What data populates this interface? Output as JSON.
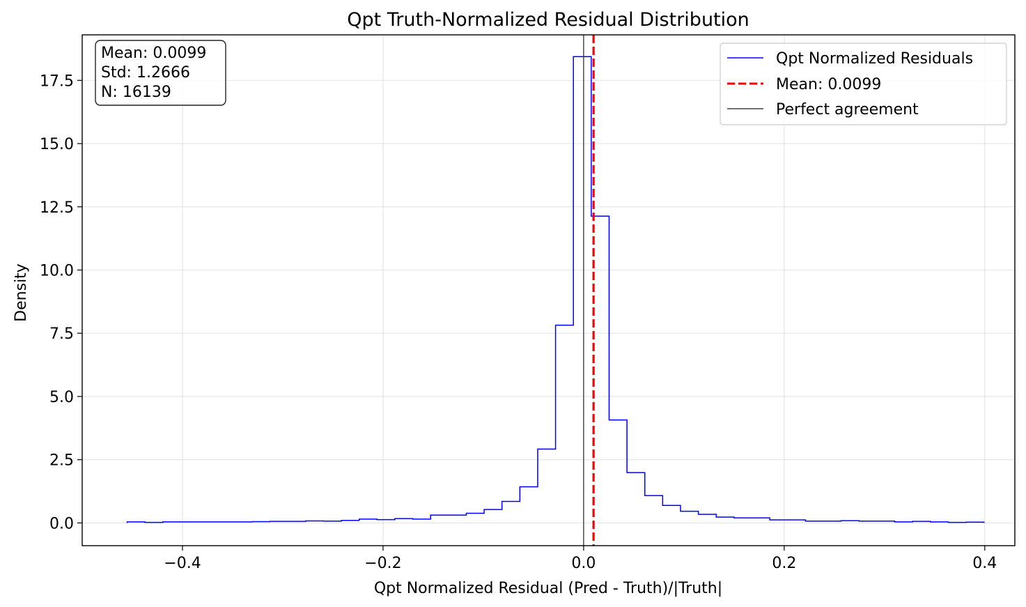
{
  "chart_data": {
    "type": "step-histogram",
    "title": "Qpt Truth-Normalized Residual Distribution",
    "xlabel": "Qpt Normalized Residual (Pred - Truth)/|Truth|",
    "ylabel": "Density",
    "xlim": [
      -0.5,
      0.43
    ],
    "ylim": [
      -0.9,
      19.3
    ],
    "xticks": [
      {
        "value": -0.4,
        "label": "−0.4"
      },
      {
        "value": -0.2,
        "label": "−0.2"
      },
      {
        "value": 0.0,
        "label": "0.0"
      },
      {
        "value": 0.2,
        "label": "0.2"
      },
      {
        "value": 0.4,
        "label": "0.4"
      }
    ],
    "yticks": [
      {
        "value": 0.0,
        "label": "0.0"
      },
      {
        "value": 2.5,
        "label": "2.5"
      },
      {
        "value": 5.0,
        "label": "5.0"
      },
      {
        "value": 7.5,
        "label": "7.5"
      },
      {
        "value": 10.0,
        "label": "10.0"
      },
      {
        "value": 12.5,
        "label": "12.5"
      },
      {
        "value": 15.0,
        "label": "15.0"
      },
      {
        "value": 17.5,
        "label": "17.5"
      }
    ],
    "grid": true,
    "bin_edges": [
      -0.4552,
      -0.4374,
      -0.4196,
      -0.4018,
      -0.384,
      -0.3662,
      -0.3484,
      -0.3306,
      -0.3128,
      -0.295,
      -0.2772,
      -0.2594,
      -0.2416,
      -0.2238,
      -0.206,
      -0.1882,
      -0.1704,
      -0.1526,
      -0.1348,
      -0.117,
      -0.0992,
      -0.0814,
      -0.0636,
      -0.0458,
      -0.028,
      -0.0102,
      0.0076,
      0.0254,
      0.0432,
      0.061,
      0.0788,
      0.0966,
      0.1144,
      0.1322,
      0.15,
      0.1678,
      0.1856,
      0.2034,
      0.2212,
      0.239,
      0.2568,
      0.2746,
      0.2924,
      0.3102,
      0.328,
      0.3458,
      0.3636,
      0.3814,
      0.3992
    ],
    "series": [
      {
        "name": "Qpt Normalized Residuals",
        "color": "#0000ff",
        "values": [
          0.04,
          0.02,
          0.04,
          0.04,
          0.04,
          0.04,
          0.04,
          0.05,
          0.06,
          0.06,
          0.08,
          0.07,
          0.1,
          0.15,
          0.13,
          0.17,
          0.15,
          0.31,
          0.31,
          0.38,
          0.53,
          0.85,
          1.43,
          2.92,
          7.82,
          18.44,
          12.13,
          4.07,
          1.99,
          1.08,
          0.69,
          0.46,
          0.34,
          0.23,
          0.2,
          0.2,
          0.12,
          0.12,
          0.07,
          0.07,
          0.09,
          0.07,
          0.07,
          0.04,
          0.06,
          0.04,
          0.02,
          0.03
        ]
      }
    ],
    "lines": [
      {
        "name": "Mean: 0.0099",
        "x": 0.0099,
        "color": "#ff0000",
        "style": "dashed"
      },
      {
        "name": "Perfect agreement",
        "x": 0.0,
        "color": "#404040",
        "style": "solid"
      }
    ],
    "legend": {
      "position": "top-right",
      "entries": [
        "Qpt Normalized Residuals",
        "Mean: 0.0099",
        "Perfect agreement"
      ]
    },
    "stats_box": {
      "position": "top-left",
      "lines": [
        "Mean: 0.0099",
        "Std: 1.2666",
        "N: 16139"
      ]
    }
  }
}
